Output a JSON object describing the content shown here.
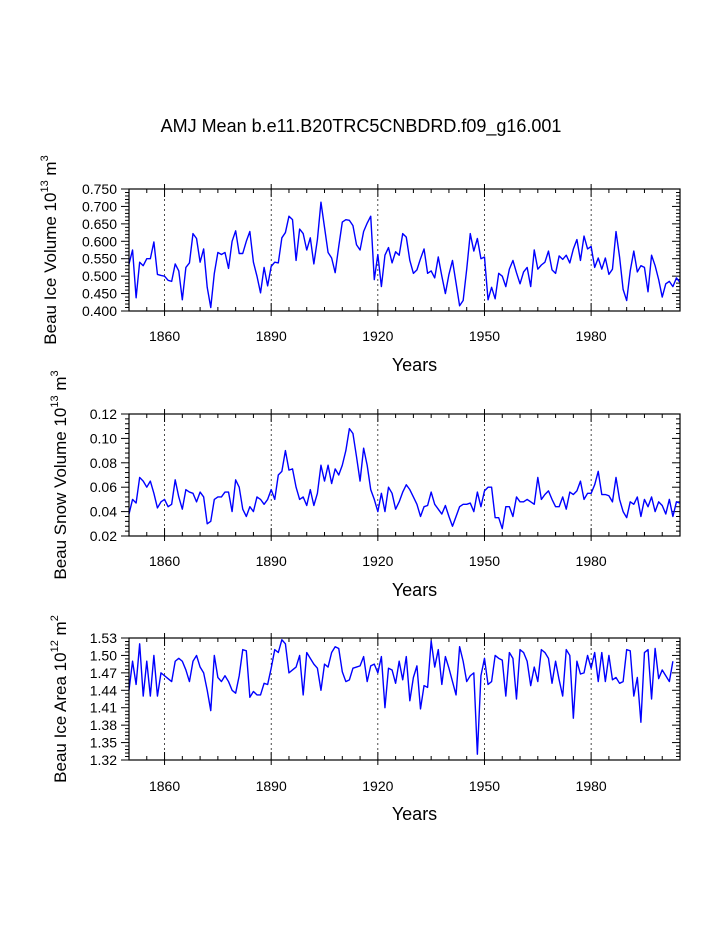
{
  "figure_title": "AMJ Mean b.e11.B20TRC5CNBDRD.f09_g16.001",
  "chart_data": [
    {
      "type": "line",
      "title": "AMJ Mean b.e11.B20TRC5CNBDRD.f09_g16.001",
      "ylabel": {
        "main": "Beau Ice Volume 10",
        "exp1": "13",
        "mid": " m",
        "exp2": "3"
      },
      "xlabel": "Years",
      "xlim": [
        1850,
        2005
      ],
      "ylim": [
        0.4,
        0.75
      ],
      "xticks": [
        1860,
        1890,
        1920,
        1950,
        1980
      ],
      "xtick_labels": [
        "1860",
        "1890",
        "1920",
        "1950",
        "1980"
      ],
      "yticks": [
        0.4,
        0.45,
        0.5,
        0.55,
        0.6,
        0.65,
        0.7,
        0.75
      ],
      "ytick_labels": [
        "0.400",
        "0.450",
        "0.500",
        "0.550",
        "0.600",
        "0.650",
        "0.700",
        "0.750"
      ],
      "line_color": "#0000ff",
      "x_start": 1850,
      "values": [
        0.535,
        0.575,
        0.438,
        0.54,
        0.53,
        0.55,
        0.55,
        0.598,
        0.505,
        0.502,
        0.5,
        0.488,
        0.485,
        0.535,
        0.515,
        0.432,
        0.525,
        0.538,
        0.622,
        0.608,
        0.54,
        0.578,
        0.468,
        0.41,
        0.508,
        0.568,
        0.562,
        0.568,
        0.522,
        0.6,
        0.63,
        0.565,
        0.565,
        0.6,
        0.628,
        0.54,
        0.5,
        0.452,
        0.525,
        0.472,
        0.528,
        0.54,
        0.538,
        0.61,
        0.625,
        0.672,
        0.662,
        0.545,
        0.635,
        0.622,
        0.575,
        0.61,
        0.535,
        0.605,
        0.712,
        0.64,
        0.568,
        0.552,
        0.51,
        0.585,
        0.655,
        0.662,
        0.66,
        0.645,
        0.59,
        0.575,
        0.628,
        0.652,
        0.672,
        0.49,
        0.562,
        0.47,
        0.56,
        0.582,
        0.538,
        0.57,
        0.56,
        0.622,
        0.612,
        0.545,
        0.508,
        0.518,
        0.55,
        0.578,
        0.508,
        0.515,
        0.495,
        0.555,
        0.5,
        0.45,
        0.505,
        0.545,
        0.48,
        0.415,
        0.43,
        0.52,
        0.622,
        0.572,
        0.608,
        0.55,
        0.555,
        0.432,
        0.468,
        0.435,
        0.508,
        0.5,
        0.47,
        0.52,
        0.545,
        0.51,
        0.478,
        0.512,
        0.525,
        0.47,
        0.575,
        0.52,
        0.532,
        0.54,
        0.572,
        0.518,
        0.508,
        0.558,
        0.548,
        0.56,
        0.538,
        0.578,
        0.605,
        0.545,
        0.615,
        0.578,
        0.585,
        0.525,
        0.552,
        0.52,
        0.552,
        0.505,
        0.52,
        0.628,
        0.555,
        0.462,
        0.43,
        0.515,
        0.572,
        0.512,
        0.53,
        0.525,
        0.455,
        0.56,
        0.53,
        0.49,
        0.44,
        0.478,
        0.485,
        0.47,
        0.495,
        0.482
      ]
    },
    {
      "type": "line",
      "title": "",
      "ylabel": {
        "main": "Beau Snow Volume 10",
        "exp1": "13",
        "mid": " m",
        "exp2": "3"
      },
      "xlabel": "Years",
      "xlim": [
        1850,
        2005
      ],
      "ylim": [
        0.02,
        0.12
      ],
      "xticks": [
        1860,
        1890,
        1920,
        1950,
        1980
      ],
      "xtick_labels": [
        "1860",
        "1890",
        "1920",
        "1950",
        "1980"
      ],
      "yticks": [
        0.02,
        0.04,
        0.06,
        0.08,
        0.1,
        0.12
      ],
      "ytick_labels": [
        "0.02",
        "0.04",
        "0.06",
        "0.08",
        "0.10",
        "0.12"
      ],
      "line_color": "#0000ff",
      "x_start": 1850,
      "values": [
        0.038,
        0.05,
        0.047,
        0.068,
        0.065,
        0.06,
        0.065,
        0.055,
        0.043,
        0.048,
        0.05,
        0.044,
        0.046,
        0.066,
        0.052,
        0.042,
        0.058,
        0.056,
        0.055,
        0.048,
        0.056,
        0.052,
        0.03,
        0.032,
        0.05,
        0.052,
        0.052,
        0.056,
        0.056,
        0.04,
        0.066,
        0.06,
        0.042,
        0.036,
        0.044,
        0.04,
        0.052,
        0.05,
        0.046,
        0.05,
        0.058,
        0.05,
        0.07,
        0.073,
        0.09,
        0.074,
        0.075,
        0.06,
        0.05,
        0.052,
        0.045,
        0.058,
        0.045,
        0.055,
        0.078,
        0.065,
        0.078,
        0.063,
        0.075,
        0.07,
        0.078,
        0.09,
        0.108,
        0.104,
        0.085,
        0.065,
        0.092,
        0.078,
        0.058,
        0.05,
        0.04,
        0.055,
        0.04,
        0.06,
        0.055,
        0.042,
        0.048,
        0.056,
        0.062,
        0.058,
        0.052,
        0.046,
        0.036,
        0.044,
        0.045,
        0.056,
        0.046,
        0.042,
        0.038,
        0.045,
        0.036,
        0.028,
        0.036,
        0.044,
        0.046,
        0.046,
        0.047,
        0.04,
        0.056,
        0.044,
        0.057,
        0.06,
        0.06,
        0.035,
        0.035,
        0.026,
        0.044,
        0.044,
        0.036,
        0.052,
        0.048,
        0.048,
        0.05,
        0.048,
        0.046,
        0.068,
        0.05,
        0.054,
        0.057,
        0.05,
        0.044,
        0.044,
        0.052,
        0.042,
        0.056,
        0.054,
        0.057,
        0.065,
        0.05,
        0.055,
        0.055,
        0.062,
        0.073,
        0.054,
        0.054,
        0.053,
        0.048,
        0.068,
        0.05,
        0.04,
        0.035,
        0.048,
        0.046,
        0.052,
        0.036,
        0.05,
        0.044,
        0.052,
        0.04,
        0.048,
        0.045,
        0.038,
        0.05,
        0.036,
        0.048,
        0.047
      ]
    },
    {
      "type": "line",
      "title": "",
      "ylabel": {
        "main": "Beau Ice Area 10",
        "exp1": "12",
        "mid": " m",
        "exp2": "2"
      },
      "xlabel": "Years",
      "xlim": [
        1850,
        2005
      ],
      "ylim": [
        1.32,
        1.53
      ],
      "xticks": [
        1860,
        1890,
        1920,
        1950,
        1980
      ],
      "xtick_labels": [
        "1860",
        "1890",
        "1920",
        "1950",
        "1980"
      ],
      "yticks": [
        1.32,
        1.35,
        1.38,
        1.41,
        1.44,
        1.47,
        1.5,
        1.53
      ],
      "ytick_labels": [
        "1.32",
        "1.35",
        "1.38",
        "1.41",
        "1.44",
        "1.47",
        "1.50",
        "1.53"
      ],
      "line_color": "#0000ff",
      "x_start": 1850,
      "values": [
        1.44,
        1.49,
        1.45,
        1.52,
        1.43,
        1.49,
        1.43,
        1.5,
        1.43,
        1.47,
        1.465,
        1.46,
        1.455,
        1.49,
        1.495,
        1.49,
        1.475,
        1.455,
        1.49,
        1.5,
        1.48,
        1.47,
        1.44,
        1.405,
        1.5,
        1.462,
        1.455,
        1.465,
        1.455,
        1.44,
        1.435,
        1.465,
        1.51,
        1.508,
        1.428,
        1.438,
        1.432,
        1.432,
        1.452,
        1.45,
        1.478,
        1.51,
        1.505,
        1.527,
        1.52,
        1.47,
        1.475,
        1.48,
        1.5,
        1.432,
        1.505,
        1.495,
        1.485,
        1.478,
        1.44,
        1.485,
        1.48,
        1.505,
        1.515,
        1.512,
        1.472,
        1.455,
        1.458,
        1.478,
        1.48,
        1.482,
        1.498,
        1.455,
        1.482,
        1.485,
        1.47,
        1.498,
        1.41,
        1.478,
        1.475,
        1.452,
        1.49,
        1.458,
        1.498,
        1.422,
        1.462,
        1.482,
        1.408,
        1.448,
        1.445,
        1.525,
        1.48,
        1.51,
        1.45,
        1.498,
        1.478,
        1.455,
        1.432,
        1.515,
        1.49,
        1.455,
        1.465,
        1.47,
        1.33,
        1.465,
        1.495,
        1.45,
        1.455,
        1.5,
        1.495,
        1.492,
        1.43,
        1.505,
        1.495,
        1.425,
        1.51,
        1.505,
        1.49,
        1.448,
        1.48,
        1.455,
        1.51,
        1.505,
        1.495,
        1.452,
        1.49,
        1.458,
        1.43,
        1.51,
        1.5,
        1.392,
        1.49,
        1.468,
        1.47,
        1.5,
        1.478,
        1.505,
        1.455,
        1.505,
        1.455,
        1.5,
        1.458,
        1.462,
        1.452,
        1.455,
        1.51,
        1.508,
        1.43,
        1.462,
        1.385,
        1.505,
        1.51,
        1.425,
        1.512,
        1.46,
        1.475,
        1.465,
        1.455,
        1.49
      ]
    }
  ]
}
